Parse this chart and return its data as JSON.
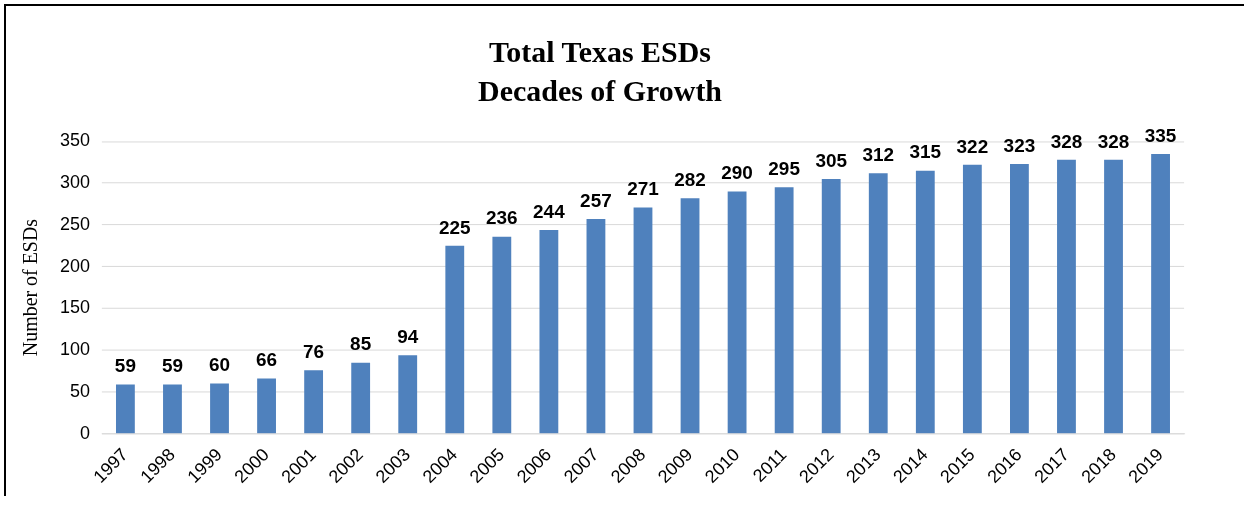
{
  "chart_data": {
    "type": "bar",
    "title": "Total Texas ESDs",
    "subtitle": "Decades of Growth",
    "ylabel": "Number of ESDs",
    "categories": [
      "1997",
      "1998",
      "1999",
      "2000",
      "2001",
      "2002",
      "2003",
      "2004",
      "2005",
      "2006",
      "2007",
      "2008",
      "2009",
      "2010",
      "2011",
      "2012",
      "2013",
      "2014",
      "2015",
      "2016",
      "2017",
      "2018",
      "2019"
    ],
    "values": [
      59,
      59,
      60,
      66,
      76,
      85,
      94,
      225,
      236,
      244,
      257,
      271,
      282,
      290,
      295,
      305,
      312,
      315,
      322,
      323,
      328,
      328,
      335
    ],
    "color": "#4f81bd",
    "ylim": [
      0,
      350
    ],
    "yticks": [
      0,
      50,
      100,
      150,
      200,
      250,
      300,
      350
    ],
    "grid": "y",
    "data_labels": true
  }
}
